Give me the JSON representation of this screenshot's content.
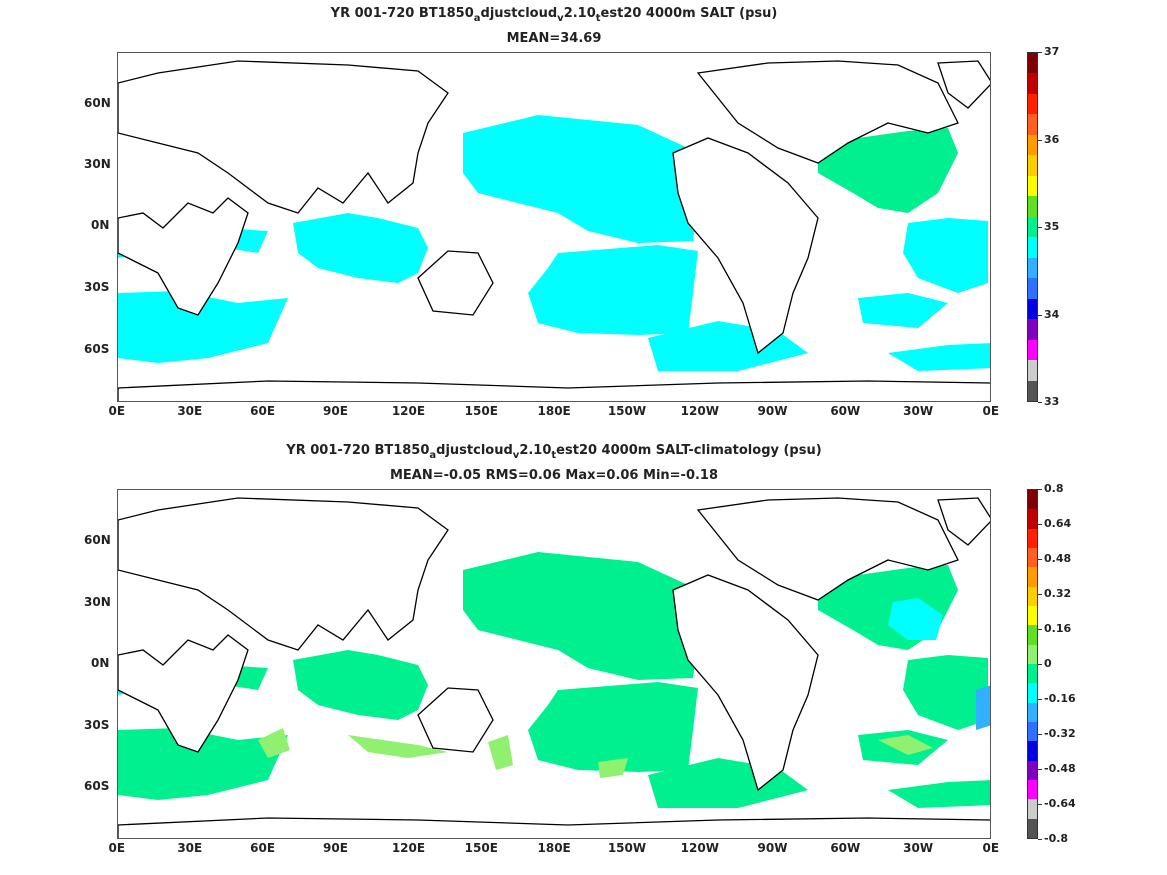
{
  "panels": [
    {
      "title_parts": [
        "YR 001-720 BT1850",
        "a",
        "djustcloud",
        "v",
        "2.10",
        "t",
        "est20 4000m SALT (psu)"
      ],
      "stats": "MEAN=34.69",
      "colorbar": {
        "labels": [
          "37",
          "36",
          "35",
          "34",
          "33"
        ],
        "colors": [
          "#7f0000",
          "#c00000",
          "#ff2000",
          "#ff6020",
          "#ff9a00",
          "#ffcc00",
          "#ffff00",
          "#60e020",
          "#00f090",
          "#00ffff",
          "#30b0ff",
          "#3070ff",
          "#0000e0",
          "#8000c0",
          "#ff00ff",
          "#cccccc",
          "#555555"
        ]
      },
      "regions": [
        {
          "name": "north-pacific-region",
          "color": "#00ffff"
        },
        {
          "name": "indian-ocean-region",
          "color": "#00ffff"
        },
        {
          "name": "south-pacific-region",
          "color": "#00ffff"
        },
        {
          "name": "north-atlantic-region",
          "color": "#00f090"
        },
        {
          "name": "south-atlantic-region",
          "color": "#00ffff"
        },
        {
          "name": "southern-ocean-region",
          "color": "#00ffff"
        }
      ]
    },
    {
      "title_parts": [
        "YR 001-720 BT1850",
        "a",
        "djustcloud",
        "v",
        "2.10",
        "t",
        "est20 4000m SALT-climatology (psu)"
      ],
      "stats": "MEAN=-0.05   RMS=0.06   Max=0.06   Min=-0.18",
      "colorbar": {
        "labels": [
          "0.8",
          "0.64",
          "0.48",
          "0.32",
          "0.16",
          "0",
          "-0.16",
          "-0.32",
          "-0.48",
          "-0.64",
          "-0.8"
        ],
        "colors": [
          "#7f0000",
          "#c00000",
          "#ff2000",
          "#ff6020",
          "#ff9a00",
          "#ffcc00",
          "#ffff00",
          "#60e020",
          "#90f070",
          "#00f090",
          "#00ffff",
          "#30b0ff",
          "#3070ff",
          "#0000e0",
          "#8000c0",
          "#ff00ff",
          "#cccccc",
          "#555555"
        ]
      },
      "regions": [
        {
          "name": "north-pacific-region",
          "color": "#00f090"
        },
        {
          "name": "indian-ocean-region",
          "color": "#00f090"
        },
        {
          "name": "south-pacific-region",
          "color": "#00f090"
        },
        {
          "name": "north-atlantic-region",
          "color": "#00f090"
        },
        {
          "name": "north-atlantic-cyan-region",
          "color": "#00ffff"
        },
        {
          "name": "southern-ocean-region",
          "color": "#00f090"
        },
        {
          "name": "positive-anomaly-patches",
          "color": "#90f070"
        },
        {
          "name": "south-atlantic-blue-patch",
          "color": "#30b0ff"
        }
      ]
    }
  ],
  "axes": {
    "lat_labels": [
      "60N",
      "30N",
      "0N",
      "30S",
      "60S"
    ],
    "lon_labels": [
      "0E",
      "30E",
      "60E",
      "90E",
      "120E",
      "150E",
      "180E",
      "150W",
      "120W",
      "90W",
      "60W",
      "30W",
      "0E"
    ]
  }
}
